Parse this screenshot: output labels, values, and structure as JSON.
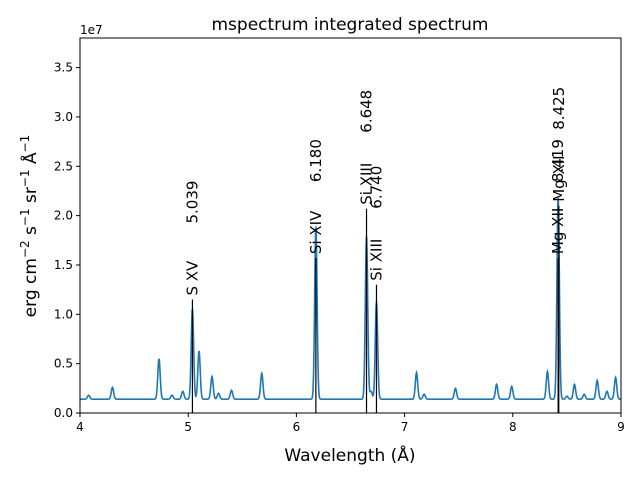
{
  "chart_data": {
    "type": "line",
    "title": "mspectrum integrated spectrum",
    "xlabel": "Wavelength (Å)",
    "ylabel_parts": {
      "a": "erg cm",
      "a_sup": "−2",
      "b": " s",
      "b_sup": "−1",
      "c": " sr",
      "c_sup": "−1",
      "d": " Å",
      "d_sup": "−1"
    },
    "offset_label": "1e7",
    "xlim": [
      4,
      9
    ],
    "ylim": [
      0,
      3.8
    ],
    "y_scale_note": "values in units of 1e7",
    "xticks": [
      "4",
      "5",
      "6",
      "7",
      "8",
      "9"
    ],
    "yticks": [
      "0.0",
      "0.5",
      "1.0",
      "1.5",
      "2.0",
      "2.5",
      "3.0",
      "3.5"
    ],
    "grid": false,
    "line_color": "#1f77b4",
    "baseline": 0.14,
    "peaks": [
      {
        "x": 4.08,
        "h": 0.04
      },
      {
        "x": 4.3,
        "h": 0.12
      },
      {
        "x": 4.73,
        "h": 0.41
      },
      {
        "x": 4.85,
        "h": 0.04
      },
      {
        "x": 4.95,
        "h": 0.08
      },
      {
        "x": 5.039,
        "h": 0.92
      },
      {
        "x": 5.1,
        "h": 0.49
      },
      {
        "x": 5.22,
        "h": 0.23
      },
      {
        "x": 5.28,
        "h": 0.06
      },
      {
        "x": 5.4,
        "h": 0.09
      },
      {
        "x": 5.68,
        "h": 0.26
      },
      {
        "x": 6.18,
        "h": 1.75
      },
      {
        "x": 6.648,
        "h": 1.66
      },
      {
        "x": 6.69,
        "h": 0.08
      },
      {
        "x": 6.74,
        "h": 0.99
      },
      {
        "x": 7.11,
        "h": 0.27
      },
      {
        "x": 7.18,
        "h": 0.05
      },
      {
        "x": 7.47,
        "h": 0.11
      },
      {
        "x": 7.85,
        "h": 0.15
      },
      {
        "x": 7.99,
        "h": 0.13
      },
      {
        "x": 8.32,
        "h": 0.28
      },
      {
        "x": 8.419,
        "h": 2.05
      },
      {
        "x": 8.5,
        "h": 0.03
      },
      {
        "x": 8.57,
        "h": 0.15
      },
      {
        "x": 8.66,
        "h": 0.05
      },
      {
        "x": 8.78,
        "h": 0.19
      },
      {
        "x": 8.87,
        "h": 0.08
      },
      {
        "x": 8.95,
        "h": 0.22
      }
    ],
    "lines": [
      {
        "ion": "S XV",
        "wavelength": "5.039",
        "x": 5.039,
        "top": 1.15
      },
      {
        "ion": "Si XIV",
        "wavelength": "6.180",
        "x": 6.18,
        "top": 1.57
      },
      {
        "ion": "Si XIII",
        "wavelength": "6.648",
        "x": 6.648,
        "top": 2.07
      },
      {
        "ion": "Si XIII",
        "wavelength": "6.740",
        "x": 6.74,
        "top": 1.3
      },
      {
        "ion": "Mg XII",
        "wavelength": "8.425",
        "x": 8.425,
        "top": 2.1
      },
      {
        "ion": "Mg XII",
        "wavelength": "8.419",
        "x": 8.419,
        "top": 1.57
      }
    ]
  }
}
